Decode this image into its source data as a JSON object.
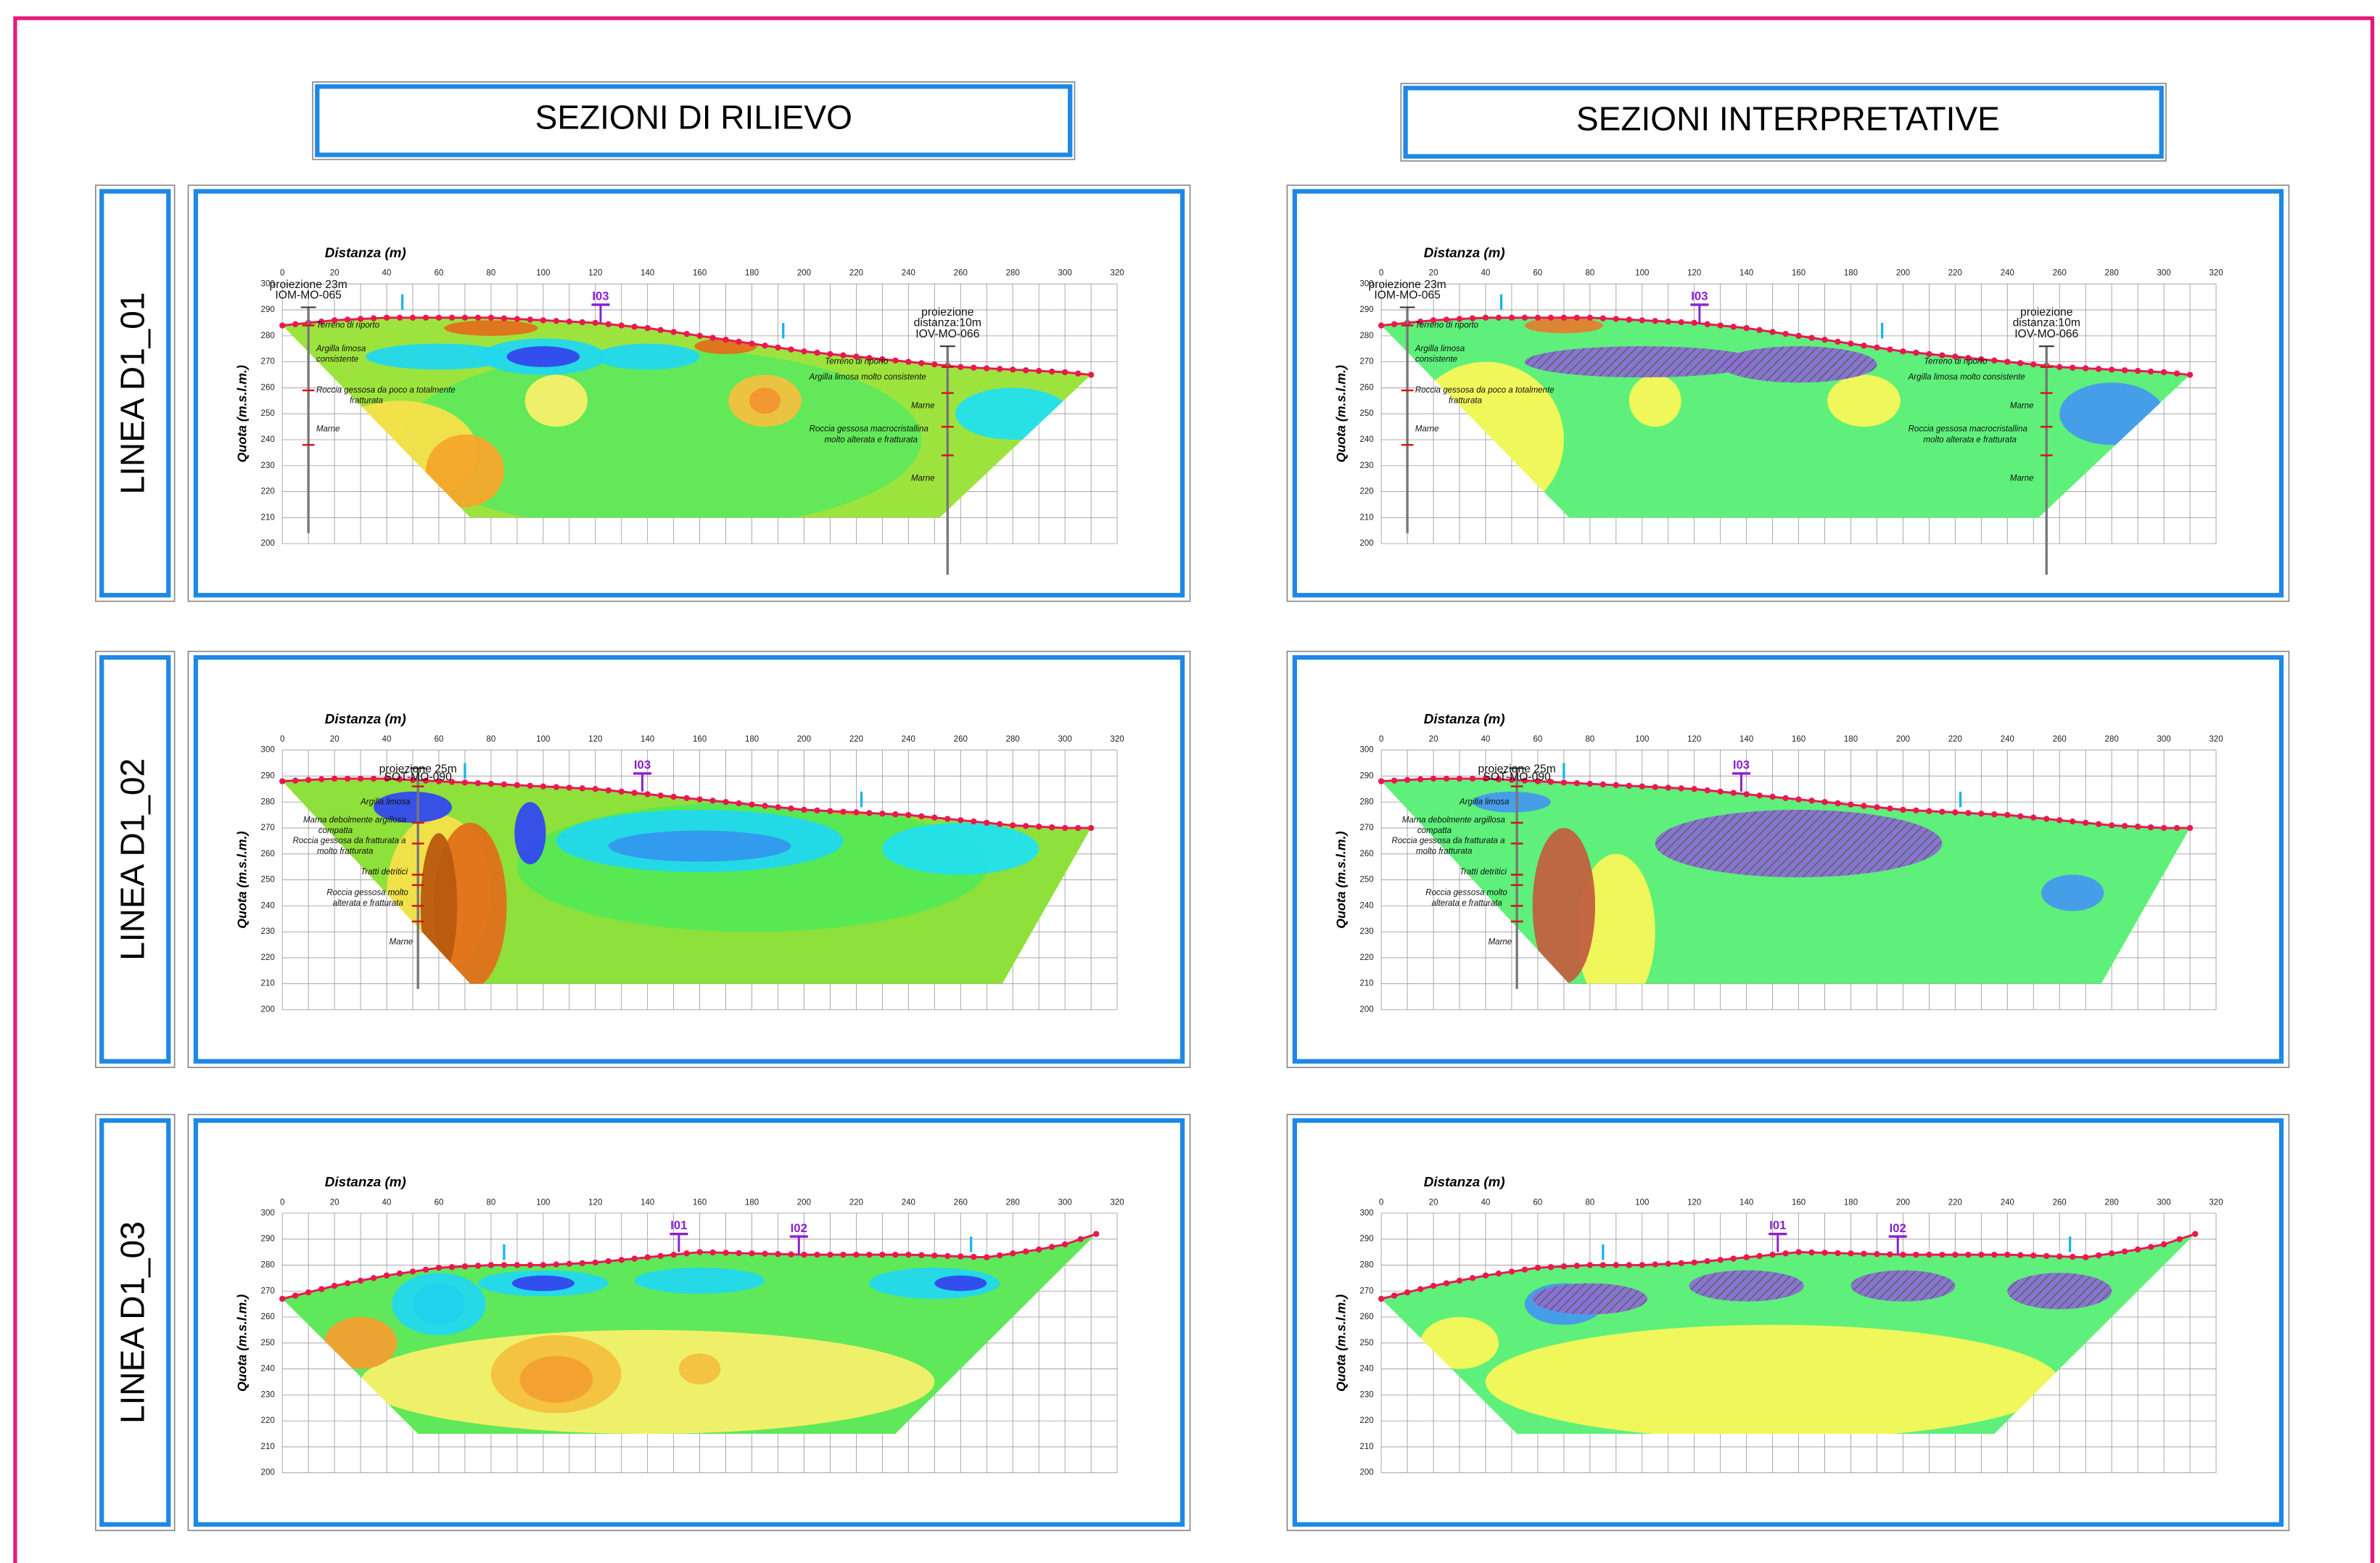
{
  "headers": [
    "SEZIONI DI RILIEVO",
    "SEZIONI INTERPRETATIVE"
  ],
  "axes": {
    "x_label": "Distanza (m)",
    "y_label": "Quota (m.s.l.m.)",
    "x_ticks": [
      0,
      20,
      40,
      60,
      80,
      100,
      120,
      140,
      160,
      180,
      200,
      220,
      240,
      260,
      280,
      300,
      320
    ],
    "y_ticks": [
      200,
      210,
      220,
      230,
      240,
      250,
      260,
      270,
      280,
      290,
      300
    ]
  },
  "rows": [
    {
      "label": "LINEA D1_01",
      "notes": [
        {
          "lines": [
            "proiezione 23m"
          ]
        },
        {
          "lines": [
            "IOM-MO-065"
          ]
        },
        {
          "lines": [
            "I03"
          ]
        },
        {
          "lines": [
            "proiezione",
            "distanza:10m"
          ]
        },
        {
          "lines": [
            "IOV-MO-066"
          ]
        },
        {
          "lines": [
            "Terreno di riporto"
          ]
        },
        {
          "lines": [
            "Argilla limosa",
            "consistente"
          ]
        },
        {
          "lines": [
            "Roccia gessosa da poco a totalmente",
            "fratturata"
          ]
        },
        {
          "lines": [
            "Marne"
          ]
        },
        {
          "lines": [
            "Terreno di riporto"
          ]
        },
        {
          "lines": [
            "Argilla limosa molto consistente"
          ]
        },
        {
          "lines": [
            "Marne"
          ]
        },
        {
          "lines": [
            "Roccia gessosa macrocristallina",
            "molto alterata e fratturata"
          ]
        },
        {
          "lines": [
            "Marne"
          ]
        }
      ]
    },
    {
      "label": "LINEA D1_02",
      "notes": [
        {
          "lines": [
            "proiezione 25m"
          ]
        },
        {
          "lines": [
            "SOT-MO-090"
          ]
        },
        {
          "lines": [
            "I03"
          ]
        },
        {
          "lines": [
            "Argilla limosa"
          ]
        },
        {
          "lines": [
            "Marna debolmente argillosa",
            "compatta"
          ]
        },
        {
          "lines": [
            "Roccia gessosa da fratturata a",
            "molto fratturata"
          ]
        },
        {
          "lines": [
            "Tratti detritici"
          ]
        },
        {
          "lines": [
            "Roccia gessosa molto",
            "alterata e fratturata"
          ]
        },
        {
          "lines": [
            "Marne"
          ]
        }
      ]
    },
    {
      "label": "LINEA D1_03",
      "notes": [
        {
          "lines": [
            "I01"
          ]
        },
        {
          "lines": [
            "I02"
          ]
        }
      ]
    }
  ]
}
